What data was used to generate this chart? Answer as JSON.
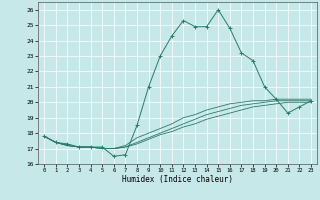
{
  "title": "",
  "xlabel": "Humidex (Indice chaleur)",
  "xlim": [
    -0.5,
    23.5
  ],
  "ylim": [
    16,
    26.5
  ],
  "xticks": [
    0,
    1,
    2,
    3,
    4,
    5,
    6,
    7,
    8,
    9,
    10,
    11,
    12,
    13,
    14,
    15,
    16,
    17,
    18,
    19,
    20,
    21,
    22,
    23
  ],
  "yticks": [
    16,
    17,
    18,
    19,
    20,
    21,
    22,
    23,
    24,
    25,
    26
  ],
  "background_color": "#c6e8e8",
  "grid_color": "#ffffff",
  "line_color": "#2a7a6a",
  "series1": [
    [
      0,
      17.8
    ],
    [
      1,
      17.4
    ],
    [
      2,
      17.3
    ],
    [
      3,
      17.1
    ],
    [
      4,
      17.1
    ],
    [
      5,
      17.1
    ],
    [
      6,
      16.5
    ],
    [
      7,
      16.6
    ],
    [
      8,
      18.5
    ],
    [
      9,
      21.0
    ],
    [
      10,
      23.0
    ],
    [
      11,
      24.3
    ],
    [
      12,
      25.3
    ],
    [
      13,
      24.9
    ],
    [
      14,
      24.9
    ],
    [
      15,
      26.0
    ],
    [
      16,
      24.8
    ],
    [
      17,
      23.2
    ],
    [
      18,
      22.7
    ],
    [
      19,
      21.0
    ],
    [
      20,
      20.2
    ],
    [
      21,
      19.3
    ],
    [
      22,
      19.7
    ],
    [
      23,
      20.1
    ]
  ],
  "series2": [
    [
      0,
      17.8
    ],
    [
      1,
      17.4
    ],
    [
      2,
      17.2
    ],
    [
      3,
      17.1
    ],
    [
      4,
      17.1
    ],
    [
      5,
      17.0
    ],
    [
      6,
      17.0
    ],
    [
      7,
      17.2
    ],
    [
      8,
      17.7
    ],
    [
      9,
      18.0
    ],
    [
      10,
      18.3
    ],
    [
      11,
      18.6
    ],
    [
      12,
      19.0
    ],
    [
      13,
      19.2
    ],
    [
      14,
      19.5
    ],
    [
      15,
      19.7
    ],
    [
      16,
      19.9
    ],
    [
      17,
      20.0
    ],
    [
      18,
      20.1
    ],
    [
      19,
      20.1
    ],
    [
      20,
      20.2
    ],
    [
      21,
      20.2
    ],
    [
      22,
      20.2
    ],
    [
      23,
      20.2
    ]
  ],
  "series3": [
    [
      0,
      17.8
    ],
    [
      1,
      17.4
    ],
    [
      2,
      17.2
    ],
    [
      3,
      17.1
    ],
    [
      4,
      17.1
    ],
    [
      5,
      17.0
    ],
    [
      6,
      17.0
    ],
    [
      7,
      17.1
    ],
    [
      8,
      17.4
    ],
    [
      9,
      17.7
    ],
    [
      10,
      18.0
    ],
    [
      11,
      18.3
    ],
    [
      12,
      18.6
    ],
    [
      13,
      18.9
    ],
    [
      14,
      19.2
    ],
    [
      15,
      19.4
    ],
    [
      16,
      19.6
    ],
    [
      17,
      19.8
    ],
    [
      18,
      19.9
    ],
    [
      19,
      20.0
    ],
    [
      20,
      20.1
    ],
    [
      21,
      20.1
    ],
    [
      22,
      20.1
    ],
    [
      23,
      20.1
    ]
  ],
  "series4": [
    [
      0,
      17.8
    ],
    [
      1,
      17.4
    ],
    [
      2,
      17.2
    ],
    [
      3,
      17.1
    ],
    [
      4,
      17.1
    ],
    [
      5,
      17.0
    ],
    [
      6,
      17.0
    ],
    [
      7,
      17.1
    ],
    [
      8,
      17.3
    ],
    [
      9,
      17.6
    ],
    [
      10,
      17.9
    ],
    [
      11,
      18.1
    ],
    [
      12,
      18.4
    ],
    [
      13,
      18.6
    ],
    [
      14,
      18.9
    ],
    [
      15,
      19.1
    ],
    [
      16,
      19.3
    ],
    [
      17,
      19.5
    ],
    [
      18,
      19.7
    ],
    [
      19,
      19.8
    ],
    [
      20,
      19.9
    ],
    [
      21,
      20.0
    ],
    [
      22,
      20.0
    ],
    [
      23,
      20.0
    ]
  ]
}
